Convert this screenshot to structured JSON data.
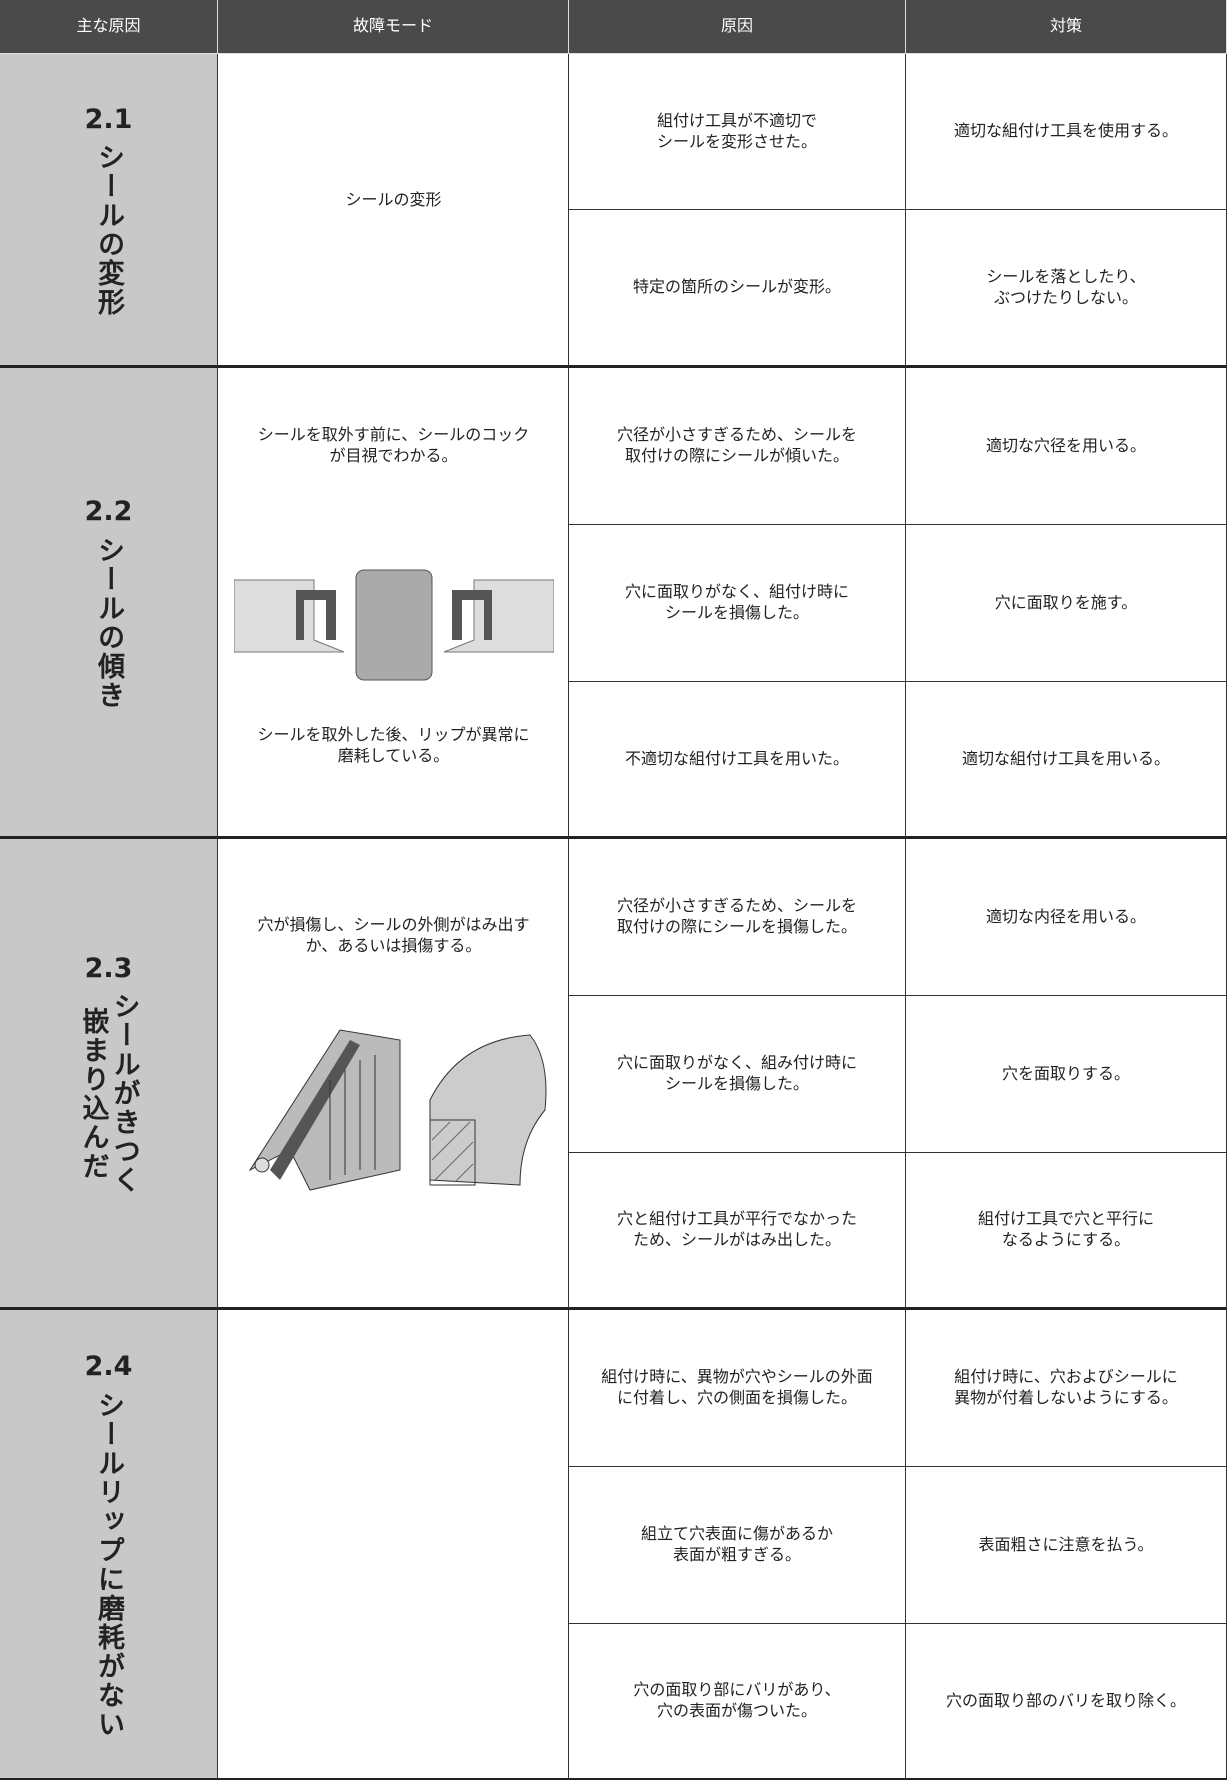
{
  "header": [
    "主な原因",
    "故障モード",
    "原因",
    "対策"
  ],
  "sections": [
    {
      "number": "2.1",
      "title_lines": [
        "シールの変形"
      ],
      "failure_modes": [
        "シールの変形"
      ],
      "rows": [
        {
          "cause": "組付け工具が不適切で\nシールを変形させた。",
          "countermeasure": "適切な組付け工具を使用する。"
        },
        {
          "cause": "特定の箇所のシールが変形。",
          "countermeasure": "シールを落としたり、\nぶつけたりしない。"
        }
      ]
    },
    {
      "number": "2.2",
      "title_lines": [
        "シールの傾き"
      ],
      "failure_modes": [
        "シールを取外す前に、シールのコック\nが目視でわかる。",
        "シールを取外した後、リップが異常に\n磨耗している。"
      ],
      "rows": [
        {
          "cause": "穴径が小さすぎるため、シールを\n取付けの際にシールが傾いた。",
          "countermeasure": "適切な穴径を用いる。"
        },
        {
          "cause": "穴に面取りがなく、組付け時に\nシールを損傷した。",
          "countermeasure": "穴に面取りを施す。"
        },
        {
          "cause": "不適切な組付け工具を用いた。",
          "countermeasure": "適切な組付け工具を用いる。"
        }
      ]
    },
    {
      "number": "2.3",
      "title_lines": [
        "シールがきつく",
        "嵌まり込んだ"
      ],
      "failure_modes": [
        "穴が損傷し、シールの外側がはみ出す\nか、あるいは損傷する。"
      ],
      "rows": [
        {
          "cause": "穴径が小さすぎるため、シールを\n取付けの際にシールを損傷した。",
          "countermeasure": "適切な内径を用いる。"
        },
        {
          "cause": "穴に面取りがなく、組み付け時に\nシールを損傷した。",
          "countermeasure": "穴を面取りする。"
        },
        {
          "cause": "穴と組付け工具が平行でなかった\nため、シールがはみ出した。",
          "countermeasure": "組付け工具で穴と平行に\nなるようにする。"
        }
      ]
    },
    {
      "number": "2.4",
      "title_lines": [
        "シールリップに磨耗がない"
      ],
      "failure_modes": [],
      "rows": [
        {
          "cause": "組付け時に、異物が穴やシールの外面\nに付着し、穴の側面を損傷した。",
          "countermeasure": "組付け時に、穴およびシールに\n異物が付着しないようにする。"
        },
        {
          "cause": "組立て穴表面に傷があるか\n表面が粗すぎる。",
          "countermeasure": "表面粗さに注意を払う。"
        },
        {
          "cause": "穴の面取り部にバリがあり、\n穴の表面が傷ついた。",
          "countermeasure": "穴の面取り部のバリを取り除く。"
        }
      ]
    }
  ]
}
